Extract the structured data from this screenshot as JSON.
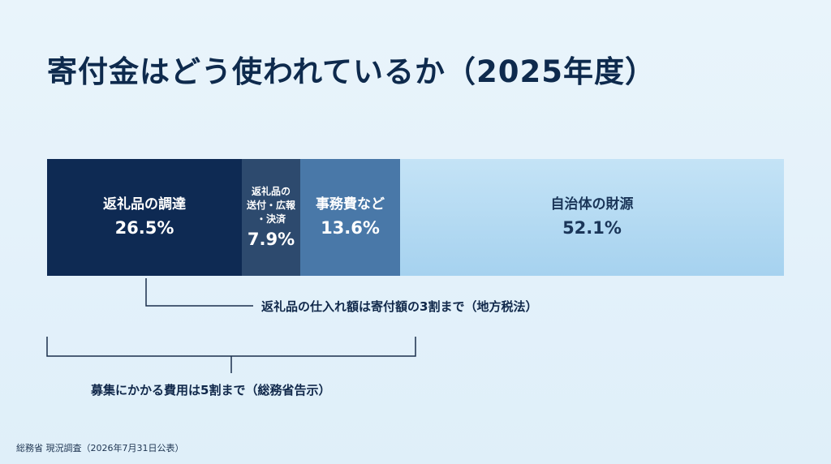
{
  "title": "寄付金はどう使われているか（2025年度）",
  "chart_data": {
    "type": "bar",
    "orientation": "horizontal-stacked-100",
    "categories": [
      "返礼品の調達",
      "返礼品の送付・広報・決済",
      "事務費など",
      "自治体の財源"
    ],
    "values": [
      26.5,
      7.9,
      13.6,
      52.1
    ],
    "value_labels": [
      "26.5%",
      "7.9%",
      "13.6%",
      "52.1%"
    ],
    "display_labels": [
      [
        "返礼品の調達"
      ],
      [
        "返礼品の",
        "送付・広報",
        "・決済"
      ],
      [
        "事務費など"
      ],
      [
        "自治体の財源"
      ]
    ],
    "colors": [
      "#0e2a53",
      "#2d4a6e",
      "#4978a8",
      "#b5daf2"
    ],
    "text_colors": [
      "#ffffff",
      "#ffffff",
      "#ffffff",
      "#1a3558"
    ],
    "annotations": [
      "返礼品の仕入れ額は寄付額の3割まで（地方税法）",
      "募集にかかる費用は5割まで（総務省告示）"
    ]
  },
  "source": "総務省 現況調査（2026年7月31日公表）"
}
